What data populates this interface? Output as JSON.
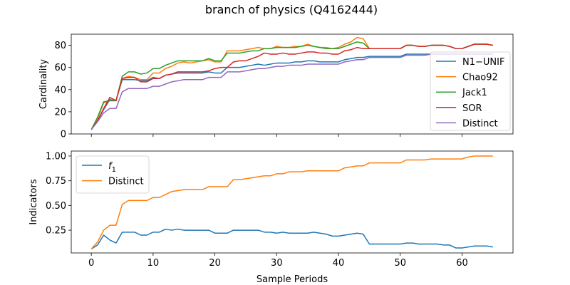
{
  "title": "branch of physics (Q4162444)",
  "colors": {
    "blue": "#1f77b4",
    "orange": "#ff7f0e",
    "green": "#2ca02c",
    "red": "#d62728",
    "purple": "#9467bd"
  },
  "chart_data": [
    {
      "type": "line",
      "xlabel": "",
      "ylabel": "Cardinality",
      "xlim": [
        -3.25,
        68.25
      ],
      "ylim": [
        0,
        90
      ],
      "xticks": [
        0,
        10,
        20,
        30,
        40,
        50,
        60
      ],
      "yticks": [
        0,
        20,
        40,
        60,
        80
      ],
      "ytick_labels": [
        "0",
        "20",
        "40",
        "60",
        "80"
      ],
      "legend_position": "right",
      "x": [
        0,
        1,
        2,
        3,
        4,
        5,
        6,
        7,
        8,
        9,
        10,
        11,
        12,
        13,
        14,
        15,
        16,
        17,
        18,
        19,
        20,
        21,
        22,
        23,
        24,
        25,
        26,
        27,
        28,
        29,
        30,
        31,
        32,
        33,
        34,
        35,
        36,
        37,
        38,
        39,
        40,
        41,
        42,
        43,
        44,
        45,
        46,
        47,
        48,
        49,
        50,
        51,
        52,
        53,
        54,
        55,
        56,
        57,
        58,
        59,
        60,
        61,
        62,
        63,
        64,
        65
      ],
      "series": [
        {
          "name": "N1−UNIF",
          "color": "blue",
          "values": [
            4,
            12,
            22,
            31,
            30,
            49,
            49,
            49,
            48,
            48,
            51,
            50,
            53,
            54,
            55,
            55,
            55,
            55,
            55,
            56,
            55,
            55,
            60,
            60,
            60,
            61,
            62,
            63,
            62,
            63,
            64,
            64,
            64,
            65,
            65,
            66,
            66,
            65,
            65,
            65,
            65,
            67,
            68,
            69,
            69,
            70,
            70,
            70,
            70,
            70,
            70,
            72,
            72,
            72,
            72,
            72,
            72,
            72,
            72,
            72,
            72,
            72,
            72,
            72,
            72,
            72
          ]
        },
        {
          "name": "Chao92",
          "color": "orange",
          "values": [
            4,
            14,
            28,
            30,
            30,
            50,
            52,
            51,
            49,
            49,
            55,
            55,
            59,
            61,
            64,
            65,
            64,
            65,
            66,
            67,
            65,
            65,
            75,
            75,
            75,
            76,
            77,
            78,
            77,
            77,
            79,
            78,
            78,
            79,
            79,
            81,
            79,
            78,
            78,
            77,
            78,
            81,
            83,
            87,
            86,
            77,
            77,
            77,
            77,
            77,
            77,
            80,
            80,
            79,
            79,
            80,
            80,
            80,
            79,
            77,
            77,
            79,
            81,
            81,
            81,
            80
          ]
        },
        {
          "name": "Jack1",
          "color": "green",
          "values": [
            4,
            15,
            29,
            30,
            30,
            52,
            56,
            56,
            54,
            55,
            59,
            59,
            62,
            64,
            66,
            66,
            66,
            66,
            66,
            68,
            66,
            66,
            73,
            73,
            73,
            74,
            75,
            75,
            77,
            77,
            78,
            78,
            78,
            78,
            79,
            80,
            79,
            78,
            77,
            77,
            77,
            79,
            81,
            83,
            82,
            77,
            77,
            77,
            77,
            77,
            77,
            80,
            80,
            79,
            79,
            80,
            80,
            80,
            79,
            77,
            77,
            79,
            81,
            81,
            81,
            80
          ]
        },
        {
          "name": "SOR",
          "color": "red",
          "values": [
            4,
            12,
            23,
            33,
            30,
            50,
            51,
            51,
            47,
            47,
            50,
            50,
            53,
            54,
            56,
            56,
            56,
            56,
            56,
            57,
            59,
            60,
            60,
            65,
            66,
            66,
            68,
            70,
            73,
            72,
            72,
            73,
            72,
            72,
            73,
            74,
            74,
            73,
            73,
            72,
            72,
            75,
            76,
            78,
            77,
            77,
            77,
            77,
            77,
            77,
            77,
            80,
            80,
            79,
            79,
            80,
            80,
            80,
            79,
            77,
            77,
            79,
            81,
            81,
            81,
            80
          ]
        },
        {
          "name": "Distinct",
          "color": "purple",
          "values": [
            4,
            11,
            19,
            23,
            23,
            38,
            41,
            41,
            41,
            41,
            43,
            43,
            45,
            47,
            48,
            49,
            49,
            49,
            49,
            51,
            51,
            51,
            56,
            56,
            56,
            57,
            58,
            59,
            59,
            60,
            61,
            61,
            62,
            62,
            62,
            63,
            63,
            63,
            63,
            63,
            63,
            65,
            66,
            67,
            67,
            69,
            69,
            69,
            69,
            69,
            69,
            71,
            71,
            71,
            71,
            72,
            72,
            72,
            72,
            72,
            72,
            72,
            72,
            72,
            72,
            72
          ]
        }
      ]
    },
    {
      "type": "line",
      "xlabel": "Sample Periods",
      "ylabel": "Indicators",
      "xlim": [
        -3.25,
        68.25
      ],
      "ylim": [
        0.02,
        1.05
      ],
      "xticks": [
        0,
        10,
        20,
        30,
        40,
        50,
        60
      ],
      "yticks": [
        0.25,
        0.5,
        0.75,
        1.0
      ],
      "ytick_labels": [
        "0.25",
        "0.50",
        "0.75",
        "1.00"
      ],
      "legend_position": "upper left",
      "x": [
        0,
        1,
        2,
        3,
        4,
        5,
        6,
        7,
        8,
        9,
        10,
        11,
        12,
        13,
        14,
        15,
        16,
        17,
        18,
        19,
        20,
        21,
        22,
        23,
        24,
        25,
        26,
        27,
        28,
        29,
        30,
        31,
        32,
        33,
        34,
        35,
        36,
        37,
        38,
        39,
        40,
        41,
        42,
        43,
        44,
        45,
        46,
        47,
        48,
        49,
        50,
        51,
        52,
        53,
        54,
        55,
        56,
        57,
        58,
        59,
        60,
        61,
        62,
        63,
        64,
        65
      ],
      "series": [
        {
          "name": "f1",
          "label_main": "f",
          "label_sub": "1",
          "color": "blue",
          "values": [
            0.06,
            0.1,
            0.2,
            0.15,
            0.12,
            0.23,
            0.23,
            0.23,
            0.2,
            0.2,
            0.23,
            0.23,
            0.26,
            0.25,
            0.26,
            0.25,
            0.25,
            0.25,
            0.25,
            0.25,
            0.22,
            0.22,
            0.22,
            0.25,
            0.25,
            0.25,
            0.25,
            0.25,
            0.23,
            0.23,
            0.22,
            0.23,
            0.22,
            0.22,
            0.22,
            0.22,
            0.23,
            0.22,
            0.21,
            0.19,
            0.19,
            0.2,
            0.21,
            0.22,
            0.21,
            0.11,
            0.11,
            0.11,
            0.11,
            0.11,
            0.11,
            0.12,
            0.12,
            0.11,
            0.11,
            0.11,
            0.11,
            0.1,
            0.1,
            0.07,
            0.07,
            0.08,
            0.09,
            0.09,
            0.09,
            0.08
          ]
        },
        {
          "name": "Distinct",
          "color": "orange",
          "values": [
            0.06,
            0.13,
            0.25,
            0.3,
            0.3,
            0.51,
            0.55,
            0.55,
            0.55,
            0.55,
            0.58,
            0.58,
            0.61,
            0.64,
            0.65,
            0.66,
            0.66,
            0.66,
            0.66,
            0.69,
            0.69,
            0.69,
            0.69,
            0.76,
            0.76,
            0.77,
            0.78,
            0.79,
            0.8,
            0.8,
            0.82,
            0.82,
            0.84,
            0.84,
            0.84,
            0.85,
            0.85,
            0.85,
            0.85,
            0.85,
            0.85,
            0.88,
            0.89,
            0.9,
            0.9,
            0.93,
            0.93,
            0.93,
            0.93,
            0.93,
            0.93,
            0.96,
            0.96,
            0.96,
            0.96,
            0.97,
            0.97,
            0.97,
            0.97,
            0.97,
            0.97,
            0.99,
            1.0,
            1.0,
            1.0,
            1.0
          ]
        }
      ]
    }
  ]
}
